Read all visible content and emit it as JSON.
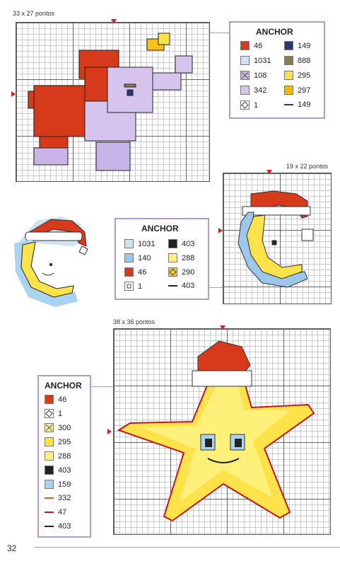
{
  "page_number": "32",
  "top_chart": {
    "size": "33 x 27 pontos",
    "legend": {
      "title": "ANCHOR",
      "items": [
        {
          "code": "46",
          "color": "#d63a1a",
          "style": "fill"
        },
        {
          "code": "149",
          "color": "#283878",
          "style": "fill"
        },
        {
          "code": "1031",
          "color": "#cfe2f1",
          "style": "fill"
        },
        {
          "code": "888",
          "color": "#8a7d55",
          "style": "fill"
        },
        {
          "code": "108",
          "color": "#c8b4e6",
          "style": "x"
        },
        {
          "code": "295",
          "color": "#fde24a",
          "style": "fill"
        },
        {
          "code": "342",
          "color": "#d7c4ee",
          "style": "fill"
        },
        {
          "code": "297",
          "color": "#f6b800",
          "style": "fill"
        },
        {
          "code": "1",
          "color": "#ffffff",
          "style": "diamond"
        },
        {
          "code": "149",
          "color": "#283878",
          "style": "line"
        }
      ]
    }
  },
  "middle_chart": {
    "size": "19 x 22 pontos",
    "legend": {
      "title": "ANCHOR",
      "items": [
        {
          "code": "1031",
          "color": "#cfe2f1",
          "style": "fill"
        },
        {
          "code": "403",
          "color": "#222222",
          "style": "fill"
        },
        {
          "code": "140",
          "color": "#9cc7ea",
          "style": "fill"
        },
        {
          "code": "288",
          "color": "#fff07a",
          "style": "fill"
        },
        {
          "code": "46",
          "color": "#d63a1a",
          "style": "fill"
        },
        {
          "code": "290",
          "color": "#f7cc1a",
          "style": "diamond"
        },
        {
          "code": "1",
          "color": "#ffffff",
          "style": "square"
        },
        {
          "code": "403",
          "color": "#222222",
          "style": "line"
        }
      ]
    }
  },
  "bottom_chart": {
    "size": "38 x 36 pontos",
    "legend": {
      "title": "ANCHOR",
      "items": [
        {
          "code": "46",
          "color": "#d63a1a",
          "style": "fill"
        },
        {
          "code": "1",
          "color": "#ffffff",
          "style": "diamond"
        },
        {
          "code": "300",
          "color": "#fff3a6",
          "style": "x"
        },
        {
          "code": "295",
          "color": "#fde24a",
          "style": "fill"
        },
        {
          "code": "288",
          "color": "#fff07a",
          "style": "fill"
        },
        {
          "code": "403",
          "color": "#222222",
          "style": "fill"
        },
        {
          "code": "159",
          "color": "#a9d3f0",
          "style": "fill"
        },
        {
          "code": "332",
          "color": "#e05a22",
          "style": "line"
        },
        {
          "code": "47",
          "color": "#c4161c",
          "style": "line"
        },
        {
          "code": "403",
          "color": "#222222",
          "style": "line"
        }
      ]
    }
  }
}
